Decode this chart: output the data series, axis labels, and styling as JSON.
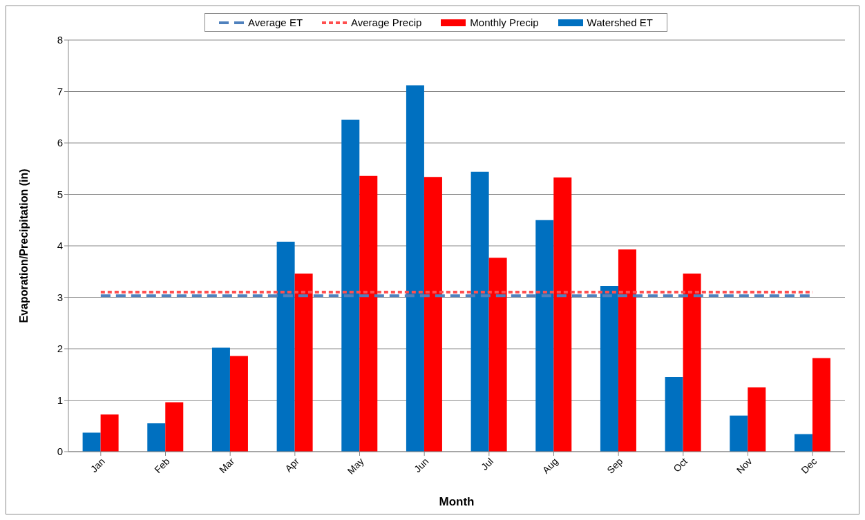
{
  "chart_data": {
    "type": "bar",
    "xlabel": "Month",
    "ylabel": "Evaporation/Precipitation (in)",
    "categories": [
      "Jan",
      "Feb",
      "Mar",
      "Apr",
      "May",
      "Jun",
      "Jul",
      "Aug",
      "Sep",
      "Oct",
      "Nov",
      "Dec"
    ],
    "series": [
      {
        "name": "Watershed ET",
        "color": "#0070c0",
        "values": [
          0.37,
          0.55,
          2.02,
          4.08,
          6.45,
          7.12,
          5.44,
          4.5,
          3.22,
          1.45,
          0.7,
          0.34
        ]
      },
      {
        "name": "Monthly Precip",
        "color": "#ff0000",
        "values": [
          0.72,
          0.96,
          1.86,
          3.46,
          5.36,
          5.34,
          3.77,
          5.33,
          3.93,
          3.46,
          1.25,
          1.82
        ]
      },
      {
        "name": "Average ET",
        "type": "line",
        "line_style": "dashed",
        "color": "#4f81bd",
        "values": [
          3.03,
          3.03,
          3.03,
          3.03,
          3.03,
          3.03,
          3.03,
          3.03,
          3.03,
          3.03,
          3.03,
          3.03
        ]
      },
      {
        "name": "Average Precip",
        "type": "line",
        "line_style": "dotted",
        "color": "#ff4f4f",
        "values": [
          3.1,
          3.1,
          3.1,
          3.1,
          3.1,
          3.1,
          3.1,
          3.1,
          3.1,
          3.1,
          3.1,
          3.1
        ]
      }
    ],
    "ylim": [
      0,
      8
    ],
    "yticks": [
      0,
      1,
      2,
      3,
      4,
      5,
      6,
      7,
      8
    ],
    "grid": "y",
    "legend": "top",
    "marker": "none"
  }
}
